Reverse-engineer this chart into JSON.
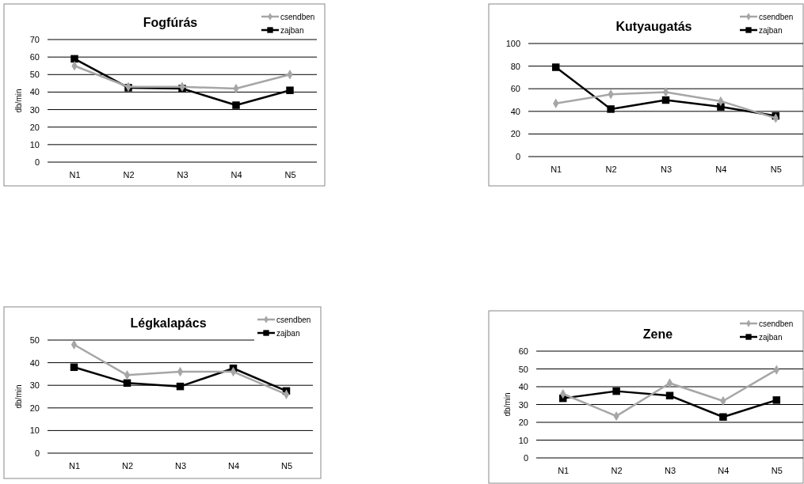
{
  "chart_data": [
    {
      "type": "line",
      "title": "Fogfúrás",
      "ylabel": "db/min",
      "categories": [
        "N1",
        "N2",
        "N3",
        "N4",
        "N5"
      ],
      "ylim": [
        0,
        70
      ],
      "yticks": [
        0,
        10,
        20,
        30,
        40,
        50,
        60,
        70
      ],
      "grid": "y",
      "legend": "top right",
      "series": [
        {
          "name": "csendben",
          "color": "#a6a6a6",
          "marker": "diamond",
          "values": [
            55,
            43,
            43,
            42,
            50
          ]
        },
        {
          "name": "zajban",
          "color": "#000000",
          "marker": "square",
          "values": [
            59,
            42.5,
            42,
            32.5,
            41
          ]
        }
      ]
    },
    {
      "type": "line",
      "title": "Kutyaugatás",
      "categories": [
        "N1",
        "N2",
        "N3",
        "N4",
        "N5"
      ],
      "ylim": [
        0,
        100
      ],
      "yticks": [
        0,
        20,
        40,
        60,
        80,
        100
      ],
      "grid": "y",
      "legend": "top right",
      "series": [
        {
          "name": "csendben",
          "color": "#a6a6a6",
          "marker": "diamond",
          "values": [
            47,
            55,
            57,
            49,
            34
          ]
        },
        {
          "name": "zajban",
          "color": "#000000",
          "marker": "square",
          "values": [
            79,
            42,
            50,
            44,
            36
          ]
        }
      ]
    },
    {
      "type": "line",
      "title": "Légkalapács",
      "ylabel": "db/min",
      "categories": [
        "N1",
        "N2",
        "N3",
        "N4",
        "N5"
      ],
      "ylim": [
        0,
        50
      ],
      "yticks": [
        0,
        10,
        20,
        30,
        40,
        50
      ],
      "grid": "y",
      "legend": "top right",
      "series": [
        {
          "name": "csendben",
          "color": "#a6a6a6",
          "marker": "diamond",
          "values": [
            48,
            34.5,
            36,
            36,
            26
          ]
        },
        {
          "name": "zajban",
          "color": "#000000",
          "marker": "square",
          "values": [
            38,
            31,
            29.5,
            37.5,
            27.5
          ]
        }
      ]
    },
    {
      "type": "line",
      "title": "Zene",
      "ylabel": "db/min",
      "categories": [
        "N1",
        "N2",
        "N3",
        "N4",
        "N5"
      ],
      "ylim": [
        0,
        60
      ],
      "yticks": [
        0,
        10,
        20,
        30,
        40,
        50,
        60
      ],
      "grid": "y",
      "legend": "top right",
      "series": [
        {
          "name": "csendben",
          "color": "#a6a6a6",
          "marker": "diamond",
          "values": [
            36,
            23.5,
            42,
            32,
            49.5
          ]
        },
        {
          "name": "zajban",
          "color": "#000000",
          "marker": "square",
          "values": [
            33.5,
            37.5,
            35,
            23,
            32.5
          ]
        }
      ]
    }
  ]
}
